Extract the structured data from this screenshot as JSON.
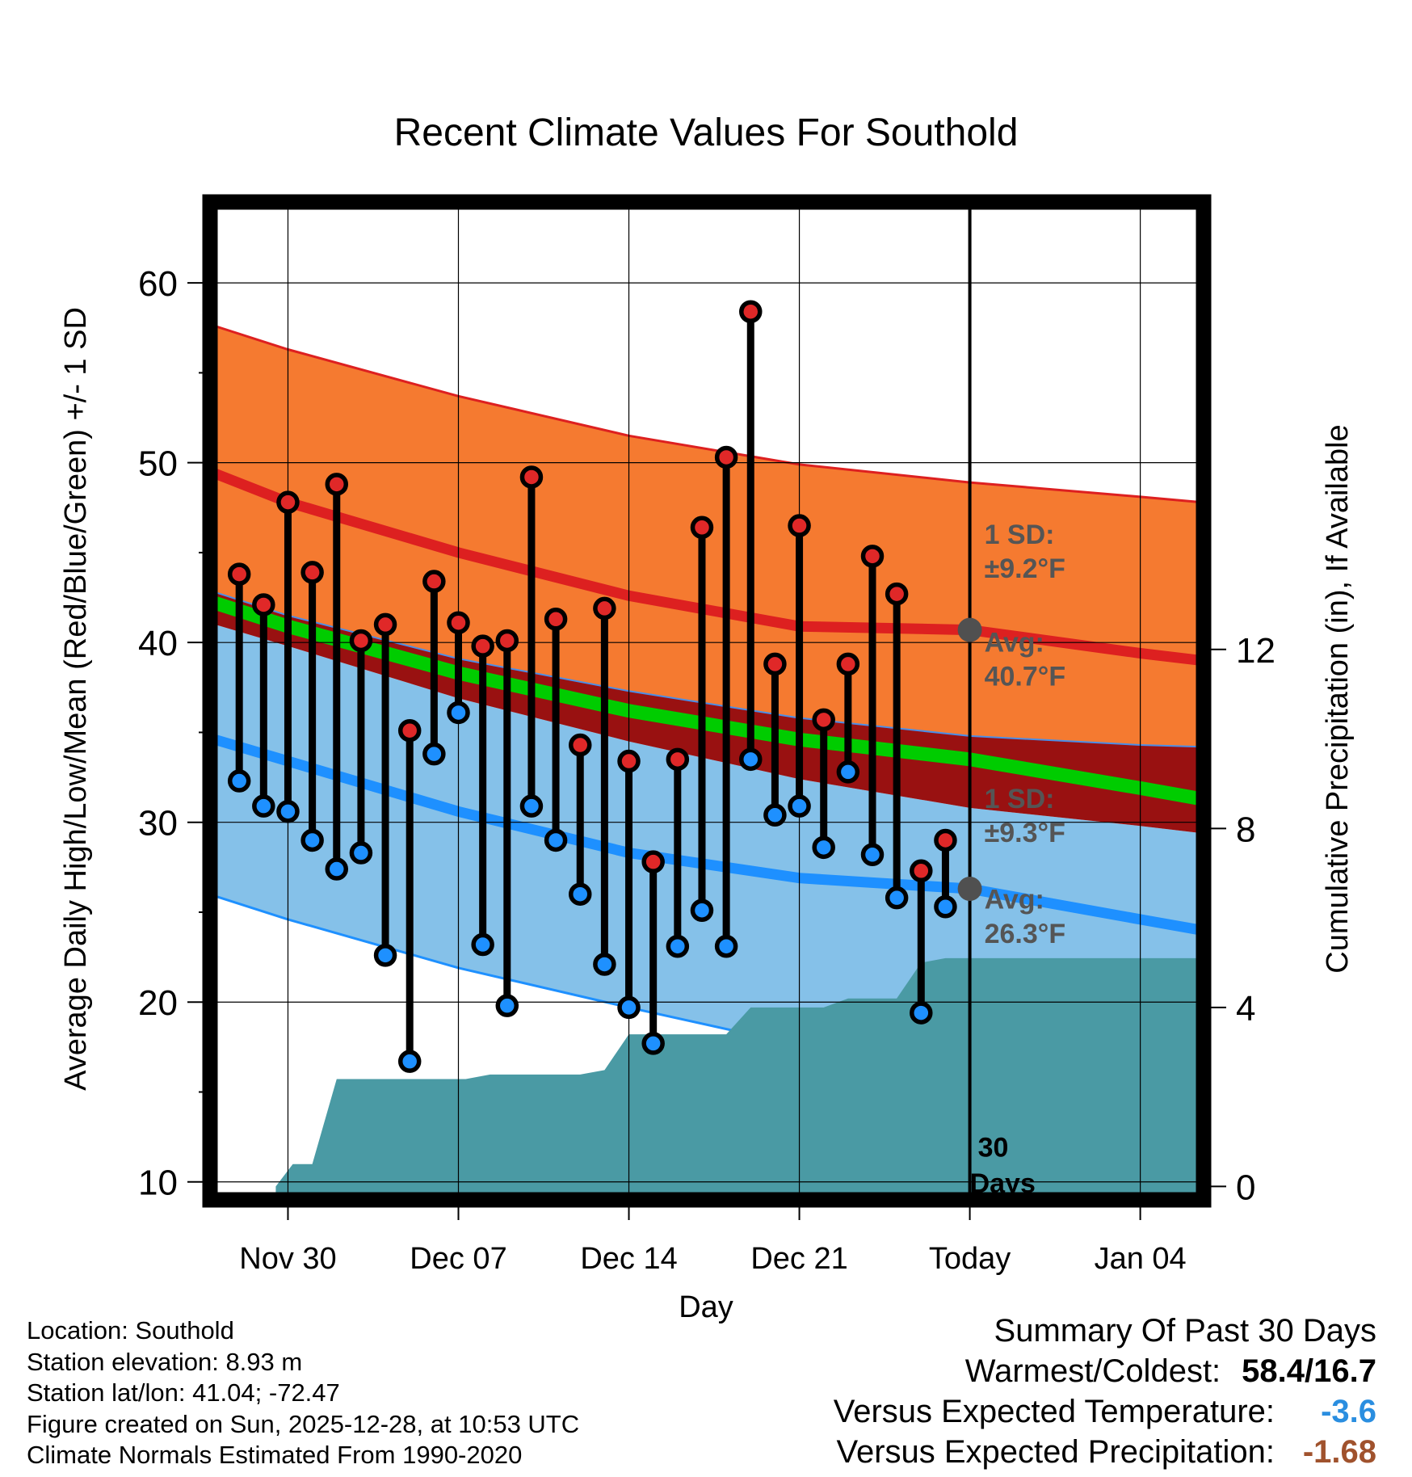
{
  "title": "Recent Climate Values For Southold",
  "xlabel": "Day",
  "ylabel_left": "Average Daily High/Low/Mean (Red/Blue/Green) +/- 1 SD",
  "ylabel_right": "Cumulative Precipitation (in), If Available",
  "chart_data": {
    "type": "line",
    "x_tick_labels": [
      {
        "day": 0,
        "label": "Nov 30"
      },
      {
        "day": 7,
        "label": "Dec 07"
      },
      {
        "day": 14,
        "label": "Dec 14"
      },
      {
        "day": 21,
        "label": "Dec 21"
      },
      {
        "day": 28,
        "label": "Today"
      },
      {
        "day": 35,
        "label": "Jan 04"
      }
    ],
    "xlim": [
      -3.2,
      37.6
    ],
    "ylim_left": [
      9,
      64.5
    ],
    "y_ticks_left": [
      10,
      20,
      30,
      40,
      50,
      60
    ],
    "ylim_right": [
      -0.3,
      22
    ],
    "y_ticks_right": [
      0,
      4,
      8,
      12
    ],
    "today_day": 28,
    "normals": {
      "day": [
        -3,
        0,
        7,
        14,
        21,
        28,
        35,
        37.5
      ],
      "high_plus_sd": [
        57.6,
        56.3,
        53.7,
        51.5,
        49.9,
        48.9,
        48.1,
        47.8
      ],
      "high_avg": [
        49.4,
        47.8,
        45.0,
        42.6,
        40.9,
        40.7,
        39.4,
        39.0
      ],
      "high_minus_sd": [
        42.8,
        41.5,
        39.1,
        37.3,
        35.8,
        34.8,
        34.3,
        34.2
      ],
      "mean_avg": [
        42.2,
        40.9,
        38.3,
        36.2,
        34.6,
        33.5,
        31.9,
        31.3
      ],
      "low_plus_sd": [
        41.0,
        39.8,
        36.9,
        34.5,
        32.4,
        30.8,
        29.8,
        29.4
      ],
      "low_avg": [
        34.6,
        33.4,
        30.6,
        28.3,
        26.9,
        26.3,
        24.6,
        24.0
      ],
      "low_minus_sd": [
        25.9,
        24.6,
        21.9,
        19.7,
        17.6,
        16.5,
        15.5,
        15.2
      ]
    },
    "series": [
      {
        "name": "High",
        "color": "#e02828",
        "values": [
          43.8,
          42.1,
          47.8,
          43.9,
          48.8,
          40.1,
          41.0,
          35.1,
          43.4,
          41.1,
          39.8,
          40.1,
          49.2,
          41.3,
          34.3,
          41.9,
          33.4,
          27.8,
          33.5,
          46.4,
          50.3,
          58.4,
          38.8,
          46.5,
          35.7,
          38.8,
          44.8,
          42.7,
          27.3,
          29.0
        ]
      },
      {
        "name": "Low",
        "color": "#1e90ff",
        "values": [
          32.3,
          30.9,
          30.6,
          29.0,
          27.4,
          28.3,
          22.6,
          16.7,
          33.8,
          36.1,
          23.2,
          19.8,
          30.9,
          29.0,
          26.0,
          22.1,
          19.7,
          17.7,
          23.1,
          25.1,
          23.1,
          33.5,
          30.4,
          30.9,
          28.6,
          32.8,
          28.2,
          25.8,
          19.4,
          25.3
        ]
      }
    ],
    "obs_start_day": -2,
    "precipitation": {
      "day": [
        -0.5,
        0.2,
        1.0,
        2.0,
        7.3,
        8.3,
        12.0,
        13.0,
        14.0,
        18.0,
        19.0,
        22.0,
        23.0,
        25.0,
        26.0,
        27.0,
        30.0,
        37.6
      ],
      "cumulative": [
        0.0,
        0.5,
        0.5,
        2.4,
        2.4,
        2.5,
        2.5,
        2.6,
        3.4,
        3.4,
        4.0,
        4.0,
        4.2,
        4.2,
        5.0,
        5.1,
        5.1,
        5.1
      ]
    },
    "annotations": {
      "high_sd": "±9.2°F",
      "high_avg": "40.7°F",
      "low_sd": "±9.3°F",
      "low_avg": "26.3°F",
      "sd_label": "1 SD:",
      "avg_label": "Avg:",
      "days_number": "30",
      "days_word": "Days"
    },
    "colors": {
      "high_band": "#f57a30",
      "high_line": "#dd2020",
      "low_band": "#85c1e9",
      "low_line": "#1e90ff",
      "mean_line": "#00cc00",
      "overlap": "#991111",
      "precip": "#4a9aa4",
      "annotation_text": "#555555",
      "avg_marker": "#505050"
    }
  },
  "footer": {
    "location": "Location: Southold",
    "elevation": "Station elevation: 8.93 m",
    "latlon": "Station lat/lon: 41.04; -72.47",
    "created": "Figure created on Sun, 2025-12-28, at 10:53 UTC",
    "normals": "Climate Normals Estimated From 1990-2020"
  },
  "summary": {
    "heading": "Summary Of Past 30 Days",
    "warm_cold_label": "Warmest/Coldest:",
    "warm_cold_value": "58.4/16.7",
    "temp_label": "Versus Expected Temperature:",
    "temp_value": "-3.6",
    "temp_color": "#2a8ee0",
    "precip_label": "Versus Expected Precipitation:",
    "precip_value": "-1.68",
    "precip_color": "#a0522d"
  }
}
